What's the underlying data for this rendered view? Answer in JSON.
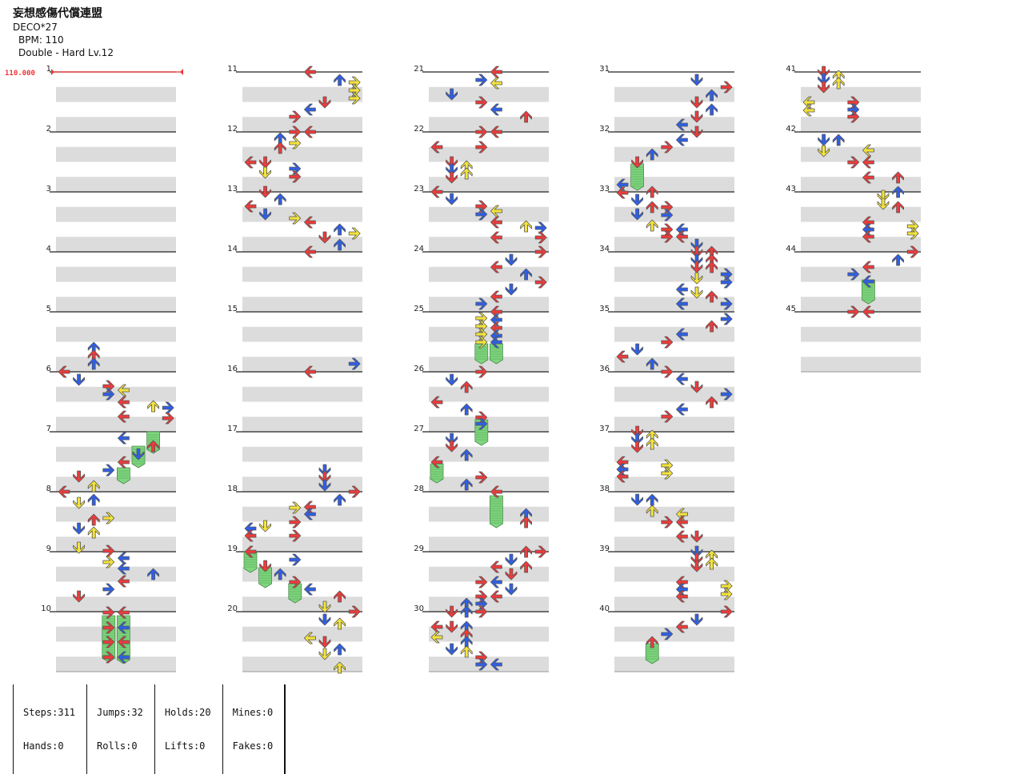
{
  "header": {
    "title": "妄想感傷代償連盟",
    "artist": "DECO*27",
    "bpm": "BPM: 110",
    "difficulty": "Double - Hard Lv.12"
  },
  "bpm_marker": "110.000",
  "colors": {
    "quarter": "#ee3b3b",
    "eighth": "#2f5fe6",
    "sixteenth": "#f3e33a",
    "hold": "#7fd67f",
    "stripe": "#dcdcdc",
    "measure_line": "#222222"
  },
  "measure_numbers": [
    "1",
    "2",
    "3",
    "4",
    "5",
    "6",
    "7",
    "8",
    "9",
    "10",
    "11",
    "12",
    "13",
    "14",
    "15",
    "16",
    "17",
    "18",
    "19",
    "20",
    "21",
    "22",
    "23",
    "24",
    "25",
    "26",
    "27",
    "28",
    "29",
    "30",
    "31",
    "32",
    "33",
    "34",
    "35",
    "36",
    "37",
    "38",
    "39",
    "40",
    "41",
    "42",
    "43",
    "44",
    "45"
  ],
  "stats": {
    "steps": "Steps:311",
    "hands": "Hands:0",
    "jumps": "Jumps:32",
    "rolls": "Rolls:0",
    "holds": "Holds:20",
    "lifts": "Lifts:0",
    "mines": "Mines:0",
    "fakes": "Fakes:0"
  }
}
